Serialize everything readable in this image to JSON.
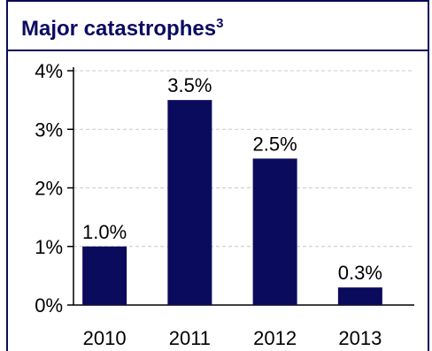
{
  "chart_data": {
    "type": "bar",
    "title": "Major catastrophes",
    "title_footnote": "3",
    "categories": [
      "2010",
      "2011",
      "2012",
      "2013"
    ],
    "values": [
      1.0,
      3.5,
      2.5,
      0.3
    ],
    "value_labels": [
      "1.0%",
      "3.5%",
      "2.5%",
      "0.3%"
    ],
    "ylim": [
      0,
      4
    ],
    "yticks": [
      {
        "value": 0,
        "label": "0%"
      },
      {
        "value": 1,
        "label": "1%"
      },
      {
        "value": 2,
        "label": "2%"
      },
      {
        "value": 3,
        "label": "3%"
      },
      {
        "value": 4,
        "label": "4%"
      }
    ],
    "xlabel": "",
    "ylabel": "",
    "grid": true,
    "bar_color": "#0b0b5e",
    "grid_color": "#c8c8c8",
    "axis_color": "#000000"
  }
}
